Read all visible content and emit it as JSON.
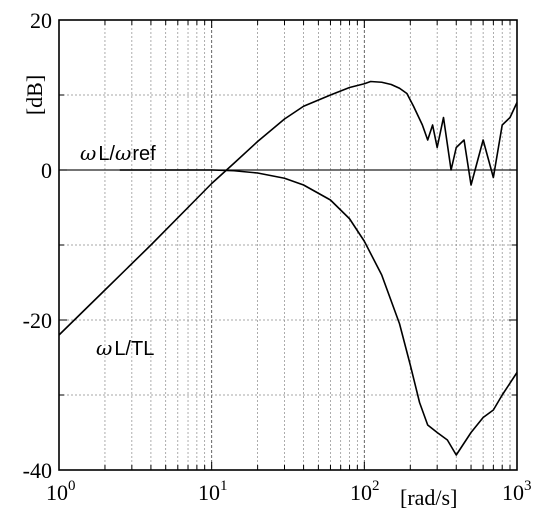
{
  "chart_data": {
    "type": "line",
    "title": "",
    "xscale": "log",
    "xlim": [
      1,
      1000
    ],
    "ylim": [
      -40,
      20
    ],
    "grid": true,
    "xlabel": "[rad/s]",
    "ylabel": "[dB]",
    "x_ticks": [
      {
        "base": "10",
        "exp": "0",
        "value": 1
      },
      {
        "base": "10",
        "exp": "1",
        "value": 10
      },
      {
        "base": "10",
        "exp": "2",
        "value": 100
      },
      {
        "base": "10",
        "exp": "3",
        "value": 1000
      }
    ],
    "y_ticks": [
      {
        "label": "20",
        "value": 20
      },
      {
        "label": "0",
        "value": 0
      },
      {
        "label": "-20",
        "value": -20
      },
      {
        "label": "-40",
        "value": -40
      }
    ],
    "annotations": [
      {
        "greek1": "ω",
        "text1": "L/",
        "greek2": "ω",
        "text2": "ref",
        "near_series": "ωL/ωref"
      },
      {
        "greek1": "ω",
        "text1": "L/TL",
        "greek2": "",
        "text2": "",
        "near_series": "ωL/TL"
      }
    ],
    "series": [
      {
        "name": "ωL/ωref",
        "x": [
          2.5,
          4,
          6,
          8,
          10,
          14,
          20,
          30,
          40,
          60,
          80,
          100,
          130,
          170,
          200,
          230,
          260,
          300,
          350,
          400,
          500,
          600,
          700,
          800,
          1000
        ],
        "y": [
          0,
          0,
          0,
          0,
          0,
          -0.1,
          -0.4,
          -1.1,
          -2,
          -4,
          -6.5,
          -9.5,
          -14,
          -20.5,
          -26,
          -31,
          -34,
          -35,
          -36,
          -38,
          -35,
          -33,
          -32,
          -30,
          -27
        ]
      },
      {
        "name": "ωL/TL",
        "x": [
          1,
          2,
          4,
          8,
          10,
          14,
          20,
          30,
          40,
          60,
          80,
          100,
          110,
          130,
          150,
          170,
          190,
          210,
          240,
          260,
          280,
          300,
          330,
          370,
          400,
          450,
          500,
          600,
          700,
          800,
          900,
          1000
        ],
        "y": [
          -22,
          -16,
          -10,
          -3.8,
          -1.8,
          0.9,
          3.8,
          6.8,
          8.5,
          10,
          11,
          11.5,
          11.8,
          11.7,
          11.4,
          10.9,
          10.2,
          8.5,
          6,
          4,
          6,
          3,
          7,
          0,
          3,
          4,
          -2,
          4,
          -1,
          6,
          7,
          9
        ]
      }
    ]
  }
}
